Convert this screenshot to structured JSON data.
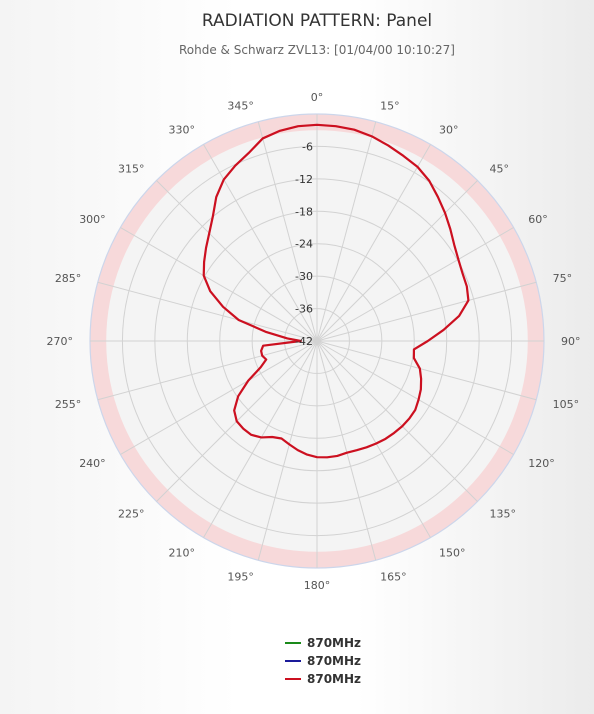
{
  "chart_data": {
    "type": "line",
    "polar": true,
    "title": "RADIATION PATTERN: Panel",
    "subtitle": "Rohde & Schwarz ZVL13: [01/04/00 10:10:27]",
    "angle_ticks": [
      0,
      15,
      30,
      45,
      60,
      75,
      90,
      105,
      120,
      135,
      150,
      165,
      180,
      195,
      210,
      225,
      240,
      255,
      270,
      285,
      300,
      315,
      330,
      345
    ],
    "angle_tick_labels": [
      "0°",
      "15°",
      "30°",
      "45°",
      "60°",
      "75°",
      "90°",
      "105°",
      "120°",
      "135°",
      "150°",
      "165°",
      "180°",
      "195°",
      "210°",
      "225°",
      "240°",
      "255°",
      "270°",
      "285°",
      "300°",
      "315°",
      "330°",
      "345°"
    ],
    "radial_range": [
      -42,
      0
    ],
    "radial_ticks": [
      -6,
      -12,
      -18,
      -24,
      -30,
      -36,
      -42
    ],
    "radial_tick_labels": [
      "-6",
      "-12",
      "-18",
      "-24",
      "-30",
      "-36",
      "-42"
    ],
    "grid": true,
    "legend": {
      "position": "bottom"
    },
    "highlight_band": {
      "from": -3,
      "to": 0,
      "color": "#f7d9da"
    },
    "series": [
      {
        "name": "870MHz",
        "color": "#1a8a1a",
        "theta": [],
        "r": []
      },
      {
        "name": "870MHz",
        "color": "#1a1a9a",
        "theta": [],
        "r": []
      },
      {
        "name": "870MHz",
        "color": "#cc1020",
        "theta": [
          0,
          5,
          10,
          15,
          20,
          25,
          30,
          35,
          40,
          45,
          50,
          55,
          60,
          65,
          70,
          75,
          80,
          85,
          90,
          95,
          100,
          105,
          110,
          115,
          120,
          125,
          130,
          135,
          140,
          145,
          150,
          155,
          160,
          165,
          170,
          175,
          180,
          185,
          190,
          195,
          200,
          205,
          210,
          215,
          220,
          225,
          230,
          235,
          240,
          245,
          250,
          255,
          260,
          265,
          270,
          275,
          280,
          285,
          290,
          295,
          300,
          305,
          310,
          315,
          320,
          325,
          330,
          335,
          340,
          345,
          350,
          355,
          360
        ],
        "r": [
          -2,
          -2.1,
          -2.3,
          -2.8,
          -3.5,
          -4.2,
          -4.8,
          -5.8,
          -7.2,
          -8.5,
          -9.8,
          -11,
          -11.8,
          -12.3,
          -12.5,
          -13,
          -15.3,
          -18.5,
          -21.5,
          -24,
          -23.8,
          -22.3,
          -21.5,
          -20.8,
          -20.3,
          -19.8,
          -19.7,
          -19.7,
          -19.8,
          -19.9,
          -20.1,
          -20.3,
          -20.5,
          -20.6,
          -20.4,
          -20.4,
          -20.5,
          -20.9,
          -21.5,
          -22.2,
          -22.8,
          -22.4,
          -21.4,
          -20.8,
          -20.8,
          -21,
          -22,
          -24.2,
          -27.3,
          -30.5,
          -32,
          -31.5,
          -31.5,
          -32,
          -39,
          -36.5,
          -32.5,
          -27,
          -23.5,
          -20.2,
          -17.8,
          -16.5,
          -15.2,
          -13.8,
          -12,
          -9.5,
          -7.5,
          -6.2,
          -5,
          -3.2,
          -2.5,
          -2.1,
          -2
        ]
      }
    ]
  }
}
